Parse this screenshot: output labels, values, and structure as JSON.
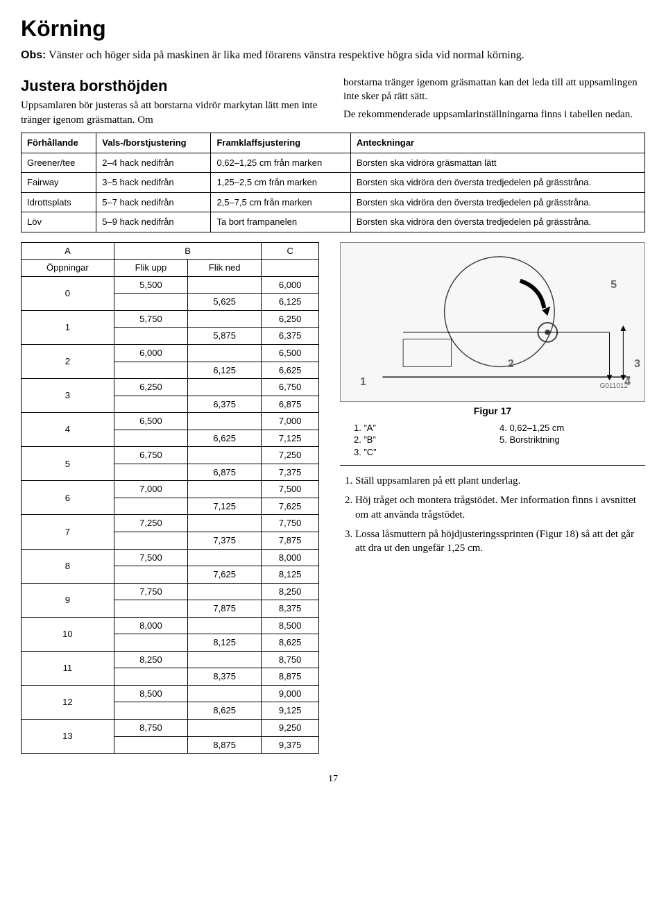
{
  "title": "Körning",
  "obs_label": "Obs:",
  "obs_text": "Vänster och höger sida på maskinen är lika med förarens vänstra respektive högra sida vid normal körning.",
  "subheading": "Justera borsthöjden",
  "intro_left": "Uppsamlaren bör justeras så att borstarna vidrör markytan lätt men inte tränger igenom gräsmattan. Om",
  "intro_right_p1": "borstarna tränger igenom gräsmattan kan det leda till att uppsamlingen inte sker på rätt sätt.",
  "intro_right_p2": "De rekommenderade uppsamlarinställningarna finns i tabellen nedan.",
  "cond_table": {
    "headers": [
      "Förhållande",
      "Vals-/borstjustering",
      "Framklaffsjustering",
      "Anteckningar"
    ],
    "rows": [
      [
        "Greener/tee",
        "2–4 hack nedifrån",
        "0,62–1,25 cm från marken",
        "Borsten ska vidröra gräsmattan lätt"
      ],
      [
        "Fairway",
        "3–5 hack nedifrån",
        "1,25–2,5 cm från marken",
        "Borsten ska vidröra den översta tredjedelen på grässtråna."
      ],
      [
        "Idrottsplats",
        "5–7 hack nedifrån",
        "2,5–7,5 cm från marken",
        "Borsten ska vidröra den översta tredjedelen på grässtråna."
      ],
      [
        "Löv",
        "5–9 hack nedifrån",
        "Ta bort frampanelen",
        "Borsten ska vidröra den översta tredjedelen på grässtråna."
      ]
    ]
  },
  "num_table": {
    "col_a": "A",
    "col_b": "B",
    "col_c": "C",
    "sub_open": "Öppningar",
    "sub_up": "Flik upp",
    "sub_down": "Flik ned",
    "rows": [
      {
        "a": "0",
        "b1": "5,500",
        "b2": "5,625",
        "c1": "6,000",
        "c2": "6,125"
      },
      {
        "a": "1",
        "b1": "5,750",
        "b2": "5,875",
        "c1": "6,250",
        "c2": "6,375"
      },
      {
        "a": "2",
        "b1": "6,000",
        "b2": "6,125",
        "c1": "6,500",
        "c2": "6,625"
      },
      {
        "a": "3",
        "b1": "6,250",
        "b2": "6,375",
        "c1": "6,750",
        "c2": "6,875"
      },
      {
        "a": "4",
        "b1": "6,500",
        "b2": "6,625",
        "c1": "7,000",
        "c2": "7,125"
      },
      {
        "a": "5",
        "b1": "6,750",
        "b2": "6,875",
        "c1": "7,250",
        "c2": "7,375"
      },
      {
        "a": "6",
        "b1": "7,000",
        "b2": "7,125",
        "c1": "7,500",
        "c2": "7,625"
      },
      {
        "a": "7",
        "b1": "7,250",
        "b2": "7,375",
        "c1": "7,750",
        "c2": "7,875"
      },
      {
        "a": "8",
        "b1": "7,500",
        "b2": "7,625",
        "c1": "8,000",
        "c2": "8,125"
      },
      {
        "a": "9",
        "b1": "7,750",
        "b2": "7,875",
        "c1": "8,250",
        "c2": "8,375"
      },
      {
        "a": "10",
        "b1": "8,000",
        "b2": "8,125",
        "c1": "8,500",
        "c2": "8,625"
      },
      {
        "a": "11",
        "b1": "8,250",
        "b2": "8,375",
        "c1": "8,750",
        "c2": "8,875"
      },
      {
        "a": "12",
        "b1": "8,500",
        "b2": "8,625",
        "c1": "9,000",
        "c2": "9,125"
      },
      {
        "a": "13",
        "b1": "8,750",
        "b2": "8,875",
        "c1": "9,250",
        "c2": "9,375"
      }
    ]
  },
  "figure": {
    "caption": "Figur 17",
    "code": "G011012",
    "labels": {
      "n1": "1",
      "n2": "2",
      "n3": "3",
      "n4": "4",
      "n5": "5"
    },
    "legend_left": [
      "1.  ”A”",
      "2.  ”B”",
      "3.  ”C”"
    ],
    "legend_right": [
      "4.  0,62–1,25 cm",
      "5.  Borstriktning"
    ]
  },
  "steps": [
    "Ställ uppsamlaren på ett plant underlag.",
    "Höj tråget och montera trågstödet. Mer information finns i avsnittet om att använda trågstödet.",
    "Lossa låsmuttern på höjdjusteringssprinten (Figur 18) så att det går att dra ut den ungefär 1,25 cm."
  ],
  "page_number": "17"
}
